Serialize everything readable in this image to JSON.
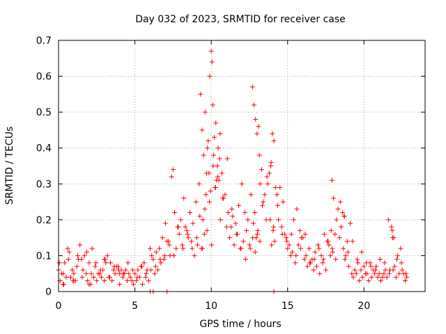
{
  "chart_data": {
    "type": "scatter",
    "title": "Day 032 of 2023, SRMTID for receiver case",
    "xlabel": "GPS time / hours",
    "ylabel": "SRMTID / TECUs",
    "xlim": [
      0,
      24
    ],
    "ylim": [
      0,
      0.7
    ],
    "xticks": [
      0,
      5,
      10,
      15,
      20
    ],
    "xtick_labels": [
      "0",
      "5",
      "10",
      "15",
      "20"
    ],
    "yticks": [
      0,
      0.1,
      0.2,
      0.3,
      0.4,
      0.5,
      0.6,
      0.7
    ],
    "ytick_labels": [
      "0",
      "0.1",
      "0.2",
      "0.3",
      "0.4",
      "0.5",
      "0.6",
      "0.7"
    ],
    "grid": true,
    "marker": "+",
    "color": "#ff0000",
    "series": [
      {
        "name": "SRMTID",
        "x": [
          0.0,
          0.2,
          0.4,
          0.6,
          0.7,
          0.8,
          1.0,
          1.2,
          1.4,
          1.5,
          1.6,
          1.8,
          2.0,
          2.2,
          2.4,
          2.6,
          2.8,
          3.0,
          3.2,
          3.4,
          3.6,
          3.8,
          4.0,
          4.2,
          4.4,
          4.6,
          4.8,
          5.0,
          5.2,
          5.4,
          5.6,
          5.8,
          6.0,
          6.1,
          6.2,
          6.4,
          6.6,
          6.8,
          7.0,
          7.2,
          7.4,
          7.5,
          7.6,
          7.8,
          8.0,
          8.2,
          8.4,
          8.6,
          8.8,
          9.0,
          9.2,
          9.3,
          9.4,
          9.5,
          9.6,
          9.7,
          9.8,
          9.9,
          10.0,
          10.05,
          10.1,
          10.2,
          10.3,
          10.4,
          10.5,
          10.6,
          10.8,
          11.0,
          11.2,
          11.4,
          11.6,
          11.8,
          12.0,
          12.2,
          12.4,
          12.6,
          12.7,
          12.8,
          12.9,
          13.0,
          13.1,
          13.2,
          13.4,
          13.6,
          13.8,
          13.9,
          14.0,
          14.1,
          14.2,
          14.4,
          14.6,
          14.8,
          15.0,
          15.2,
          15.4,
          15.6,
          15.8,
          16.0,
          16.2,
          16.4,
          16.6,
          16.8,
          17.0,
          17.2,
          17.4,
          17.6,
          17.8,
          17.9,
          18.0,
          18.2,
          18.4,
          18.6,
          18.7,
          18.8,
          19.0,
          19.2,
          19.4,
          19.6,
          19.8,
          20.0,
          20.2,
          20.4,
          20.6,
          20.8,
          21.0,
          21.2,
          21.4,
          21.6,
          21.8,
          21.9,
          22.0,
          22.2,
          22.4,
          22.6,
          22.8,
          0.1,
          0.3,
          0.5,
          0.9,
          1.1,
          1.3,
          1.7,
          1.9,
          2.1,
          2.3,
          2.5,
          2.7,
          2.9,
          3.1,
          3.3,
          3.5,
          3.7,
          3.9,
          4.1,
          4.3,
          4.5,
          4.7,
          4.9,
          5.1,
          5.3,
          5.5,
          5.7,
          5.9,
          6.3,
          6.5,
          6.7,
          6.9,
          7.1,
          7.3,
          7.7,
          7.9,
          8.1,
          8.3,
          8.5,
          8.7,
          8.9,
          9.1,
          9.35,
          9.45,
          9.55,
          9.65,
          9.75,
          9.85,
          9.95,
          10.15,
          10.25,
          10.35,
          10.45,
          10.55,
          10.7,
          10.9,
          11.1,
          11.3,
          11.5,
          11.7,
          11.9,
          12.1,
          12.3,
          12.5,
          12.75,
          12.85,
          12.95,
          13.05,
          13.15,
          13.3,
          13.5,
          13.7,
          13.85,
          13.95,
          14.05,
          14.15,
          14.3,
          14.5,
          14.7,
          14.9,
          15.1,
          15.3,
          15.5,
          15.7,
          15.9,
          16.1,
          16.3,
          16.5,
          16.7,
          16.9,
          17.1,
          17.3,
          17.5,
          17.7,
          17.85,
          17.95,
          18.1,
          18.3,
          18.5,
          18.65,
          18.75,
          18.9,
          19.1,
          19.3,
          19.5,
          19.7,
          19.9,
          20.1,
          20.3,
          20.5,
          20.7,
          20.9,
          21.1,
          21.3,
          21.5,
          21.7,
          21.85,
          21.95,
          22.1,
          22.3,
          22.5,
          22.7,
          0.05,
          0.35,
          0.65,
          0.95,
          1.25,
          1.55,
          1.85,
          2.15,
          2.45,
          2.75,
          3.05,
          3.35,
          3.65,
          3.95,
          4.25,
          4.55,
          4.85,
          5.15,
          5.45,
          5.75,
          6.05,
          6.35,
          6.65,
          6.95,
          7.25,
          7.55,
          7.85,
          8.15,
          8.45,
          8.75,
          9.05,
          9.25,
          9.42,
          9.58,
          9.72,
          9.88,
          10.02,
          10.12,
          10.28,
          10.42,
          10.58,
          10.75,
          11.05,
          11.35,
          11.65,
          11.95,
          12.25,
          12.55,
          12.72,
          12.88,
          13.02,
          13.18,
          13.35,
          13.65,
          13.92,
          14.08,
          14.35,
          14.65,
          14.95,
          15.25,
          15.55,
          15.85,
          16.15,
          16.45,
          16.75,
          17.05,
          17.35,
          17.65,
          17.92,
          18.15,
          18.45,
          18.72,
          18.95,
          19.25,
          19.55,
          19.85,
          20.15,
          20.45,
          20.75,
          21.05,
          21.35,
          21.65,
          21.88,
          22.15,
          22.45,
          22.75,
          6.0,
          6.2,
          7.1,
          14.1,
          0.3,
          1.0,
          2.0,
          3.0,
          4.0
        ],
        "y": [
          0.06,
          0.05,
          0.08,
          0.12,
          0.11,
          0.04,
          0.05,
          0.07,
          0.13,
          0.09,
          0.06,
          0.05,
          0.08,
          0.12,
          0.07,
          0.05,
          0.04,
          0.09,
          0.1,
          0.08,
          0.06,
          0.07,
          0.05,
          0.04,
          0.06,
          0.05,
          0.03,
          0.05,
          0.06,
          0.07,
          0.08,
          0.06,
          0.12,
          0.1,
          0.09,
          0.11,
          0.12,
          0.15,
          0.19,
          0.14,
          0.32,
          0.34,
          0.22,
          0.18,
          0.2,
          0.26,
          0.17,
          0.22,
          0.19,
          0.25,
          0.3,
          0.55,
          0.45,
          0.38,
          0.5,
          0.33,
          0.42,
          0.6,
          0.67,
          0.64,
          0.52,
          0.43,
          0.47,
          0.35,
          0.31,
          0.2,
          0.26,
          0.18,
          0.15,
          0.21,
          0.19,
          0.24,
          0.3,
          0.22,
          0.2,
          0.27,
          0.57,
          0.52,
          0.48,
          0.44,
          0.46,
          0.3,
          0.25,
          0.2,
          0.33,
          0.35,
          0.44,
          0.42,
          0.29,
          0.2,
          0.18,
          0.16,
          0.12,
          0.1,
          0.2,
          0.23,
          0.17,
          0.15,
          0.1,
          0.12,
          0.09,
          0.11,
          0.13,
          0.1,
          0.16,
          0.14,
          0.1,
          0.31,
          0.26,
          0.2,
          0.15,
          0.22,
          0.21,
          0.1,
          0.07,
          0.05,
          0.06,
          0.08,
          0.06,
          0.07,
          0.05,
          0.08,
          0.06,
          0.07,
          0.05,
          0.04,
          0.06,
          0.2,
          0.18,
          0.06,
          0.07,
          0.1,
          0.12,
          0.05,
          0.04,
          0.03,
          0.05,
          0.04,
          0.06,
          0.03,
          0.09,
          0.1,
          0.03,
          0.02,
          0.04,
          0.03,
          0.05,
          0.06,
          0.08,
          0.04,
          0.03,
          0.05,
          0.07,
          0.06,
          0.05,
          0.03,
          0.04,
          0.02,
          0.03,
          0.04,
          0.02,
          0.04,
          0.03,
          0.05,
          0.06,
          0.08,
          0.09,
          0.14,
          0.1,
          0.12,
          0.16,
          0.13,
          0.18,
          0.15,
          0.14,
          0.1,
          0.13,
          0.12,
          0.2,
          0.16,
          0.27,
          0.4,
          0.33,
          0.28,
          0.38,
          0.29,
          0.31,
          0.4,
          0.37,
          0.33,
          0.27,
          0.22,
          0.18,
          0.13,
          0.16,
          0.12,
          0.14,
          0.17,
          0.13,
          0.19,
          0.22,
          0.15,
          0.17,
          0.38,
          0.34,
          0.27,
          0.3,
          0.2,
          0.13,
          0.17,
          0.14,
          0.27,
          0.29,
          0.25,
          0.15,
          0.13,
          0.11,
          0.08,
          0.13,
          0.15,
          0.09,
          0.07,
          0.08,
          0.06,
          0.07,
          0.05,
          0.08,
          0.06,
          0.13,
          0.17,
          0.11,
          0.16,
          0.23,
          0.18,
          0.12,
          0.09,
          0.14,
          0.19,
          0.04,
          0.05,
          0.03,
          0.04,
          0.05,
          0.03,
          0.04,
          0.05,
          0.04,
          0.03,
          0.05,
          0.04,
          0.06,
          0.17,
          0.15,
          0.04,
          0.05,
          0.06,
          0.03,
          0.08,
          0.02,
          0.09,
          0.03,
          0.1,
          0.04,
          0.11,
          0.05,
          0.08,
          0.06,
          0.09,
          0.04,
          0.07,
          0.06,
          0.05,
          0.08,
          0.06,
          0.04,
          0.07,
          0.05,
          0.06,
          0.07,
          0.09,
          0.1,
          0.13,
          0.1,
          0.18,
          0.12,
          0.16,
          0.12,
          0.15,
          0.21,
          0.12,
          0.23,
          0.17,
          0.25,
          0.13,
          0.35,
          0.29,
          0.32,
          0.44,
          0.26,
          0.37,
          0.23,
          0.16,
          0.12,
          0.09,
          0.12,
          0.15,
          0.11,
          0.16,
          0.14,
          0.24,
          0.32,
          0.36,
          0.18,
          0.24,
          0.16,
          0.14,
          0.16,
          0.1,
          0.12,
          0.16,
          0.08,
          0.09,
          0.12,
          0.09,
          0.14,
          0.12,
          0.09,
          0.25,
          0.21,
          0.11,
          0.14,
          0.09,
          0.11,
          0.08,
          0.07,
          0.06,
          0.09,
          0.08,
          0.05,
          0.15,
          0.09,
          0.08,
          0.05,
          0.0,
          0.0,
          0.0,
          0.0,
          0.02,
          0.03,
          0.02,
          0.03,
          0.02
        ]
      }
    ]
  }
}
